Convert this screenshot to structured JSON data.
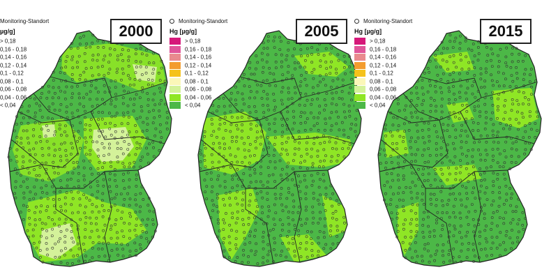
{
  "marker_label": "Monitoring-Standort",
  "legend_title": "Hg [µg/g]",
  "legend_title_partial": "µg/g]",
  "classes": [
    {
      "label": "> 0,18",
      "color": "#d6187a"
    },
    {
      "label": "0,16 - 0,18",
      "color": "#e0559a"
    },
    {
      "label": "0,14 - 0,16",
      "color": "#e98a8e"
    },
    {
      "label": "0,12 - 0,14",
      "color": "#f39c2e"
    },
    {
      "label": "0,1 - 0,12",
      "color": "#f5c21a"
    },
    {
      "label": "0,08 - 0,1",
      "color": "#fbf7b8"
    },
    {
      "label": "0,06 - 0,08",
      "color": "#d4f29a"
    },
    {
      "label": "0,04 - 0,06",
      "color": "#8fe625"
    },
    {
      "label": "< 0,04",
      "color": "#4cb847"
    }
  ],
  "panels": [
    {
      "year": "2000"
    },
    {
      "year": "2005"
    },
    {
      "year": "2015"
    }
  ]
}
